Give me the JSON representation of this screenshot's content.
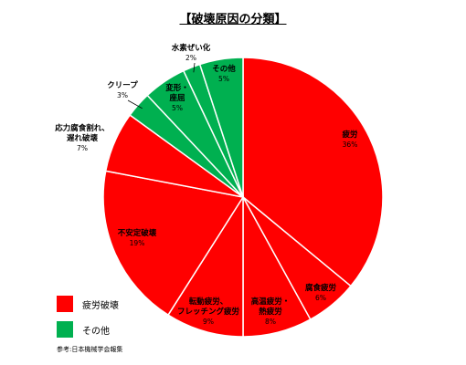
{
  "title": "【破壊原因の分類】",
  "colors": {
    "fatigue": "#ff0000",
    "other": "#00b050"
  },
  "legend": [
    {
      "label": "疲労破壊",
      "color": "#ff0000"
    },
    {
      "label": "その他",
      "color": "#00b050"
    }
  ],
  "source": "参考:日本機械学会報集",
  "chart_data": {
    "type": "pie",
    "start_angle_deg": 0,
    "direction": "clockwise",
    "slices": [
      {
        "name": "疲労",
        "value": 36,
        "pct_label": "36%",
        "group": "fatigue"
      },
      {
        "name": "腐食疲労",
        "value": 6,
        "pct_label": "6%",
        "group": "fatigue"
      },
      {
        "name": "高温疲労・熱疲労",
        "value": 8,
        "pct_label": "8%",
        "group": "fatigue"
      },
      {
        "name": "転動疲労、フレッチング疲労",
        "value": 9,
        "pct_label": "9%",
        "group": "fatigue"
      },
      {
        "name": "不安定破壊",
        "value": 19,
        "pct_label": "19%",
        "group": "fatigue"
      },
      {
        "name": "応力腐食割れ、遅れ破壊",
        "value": 7,
        "pct_label": "7%",
        "group": "fatigue"
      },
      {
        "name": "クリープ",
        "value": 3,
        "pct_label": "3%",
        "group": "other"
      },
      {
        "name": "変形・座屈",
        "value": 5,
        "pct_label": "5%",
        "group": "other"
      },
      {
        "name": "水素ぜい化",
        "value": 2,
        "pct_label": "2%",
        "group": "other"
      },
      {
        "name": "その他",
        "value": 5,
        "pct_label": "5%",
        "group": "other"
      }
    ]
  }
}
